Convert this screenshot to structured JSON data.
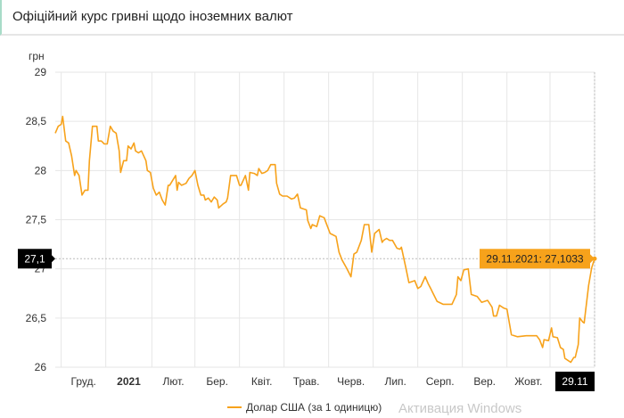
{
  "header": {
    "title": "Офіційний курс гривні щодо іноземних валют"
  },
  "watermark": "Активация Windows",
  "colors": {
    "line": "#f7a21b",
    "grid": "#e6e6e6",
    "crosshair_label_bg": "#000000"
  },
  "chart_data": {
    "type": "line",
    "title": "Офіційний курс гривні щодо іноземних валют",
    "ylabel": "грн",
    "xlabel": "",
    "ylim": [
      26,
      29
    ],
    "yticks": [
      "29",
      "28,5",
      "28",
      "27,5",
      "27",
      "26,5",
      "26"
    ],
    "ytick_values": [
      29,
      28.5,
      28,
      27.5,
      27,
      26.5,
      26
    ],
    "x_unit": "days since start of visible range (approx.)",
    "xlim": [
      0,
      363
    ],
    "month_boundaries": [
      4,
      34,
      65,
      94,
      124,
      154,
      184,
      214,
      244,
      274,
      304,
      333,
      363
    ],
    "xticks": [
      {
        "label": "Груд.",
        "bold": false
      },
      {
        "label": "2021",
        "bold": true
      },
      {
        "label": "Лют.",
        "bold": false
      },
      {
        "label": "Бер.",
        "bold": false
      },
      {
        "label": "Квіт.",
        "bold": false
      },
      {
        "label": "Трав.",
        "bold": false
      },
      {
        "label": "Черв.",
        "bold": false
      },
      {
        "label": "Лип.",
        "bold": false
      },
      {
        "label": "Серп.",
        "bold": false
      },
      {
        "label": "Вер.",
        "bold": false
      },
      {
        "label": "Жовт.",
        "bold": false
      }
    ],
    "legend": {
      "label": "Долар США (за 1 одиницю)",
      "position": "bottom-center"
    },
    "crosshair": {
      "y_label": "27,1",
      "x_label": "29.11",
      "tooltip": "29.11.2021: 27,1033",
      "value": 27.1033,
      "x": 363
    },
    "series": [
      {
        "name": "Долар США (за 1 одиницю)",
        "points": [
          [
            0,
            28.38
          ],
          [
            2,
            28.45
          ],
          [
            4,
            28.47
          ],
          [
            5,
            28.55
          ],
          [
            7,
            28.3
          ],
          [
            9,
            28.28
          ],
          [
            11,
            28.15
          ],
          [
            13,
            27.95
          ],
          [
            14,
            28.0
          ],
          [
            16,
            27.95
          ],
          [
            18,
            27.75
          ],
          [
            20,
            27.8
          ],
          [
            22,
            27.8
          ],
          [
            23,
            28.1
          ],
          [
            25,
            28.45
          ],
          [
            28,
            28.45
          ],
          [
            29,
            28.3
          ],
          [
            31,
            28.3
          ],
          [
            33,
            28.27
          ],
          [
            35,
            28.27
          ],
          [
            37,
            28.45
          ],
          [
            39,
            28.4
          ],
          [
            41,
            28.38
          ],
          [
            43,
            28.2
          ],
          [
            44,
            27.98
          ],
          [
            46,
            28.1
          ],
          [
            48,
            28.1
          ],
          [
            49,
            28.25
          ],
          [
            51,
            28.22
          ],
          [
            53,
            28.28
          ],
          [
            54,
            28.2
          ],
          [
            56,
            28.18
          ],
          [
            58,
            28.2
          ],
          [
            61,
            28.1
          ],
          [
            62,
            28.0
          ],
          [
            64,
            27.98
          ],
          [
            66,
            27.82
          ],
          [
            68,
            27.75
          ],
          [
            70,
            27.78
          ],
          [
            72,
            27.7
          ],
          [
            74,
            27.65
          ],
          [
            76,
            27.85
          ],
          [
            77,
            27.85
          ],
          [
            81,
            27.95
          ],
          [
            82,
            27.8
          ],
          [
            83,
            27.88
          ],
          [
            85,
            27.85
          ],
          [
            88,
            27.87
          ],
          [
            90,
            27.92
          ],
          [
            92,
            27.95
          ],
          [
            94,
            28.0
          ],
          [
            96,
            27.85
          ],
          [
            98,
            27.75
          ],
          [
            100,
            27.75
          ],
          [
            101,
            27.7
          ],
          [
            103,
            27.72
          ],
          [
            105,
            27.68
          ],
          [
            107,
            27.73
          ],
          [
            109,
            27.7
          ],
          [
            110,
            27.62
          ],
          [
            113,
            27.66
          ],
          [
            115,
            27.68
          ],
          [
            116,
            27.72
          ],
          [
            118,
            27.95
          ],
          [
            120,
            27.95
          ],
          [
            122,
            27.95
          ],
          [
            124,
            27.85
          ],
          [
            125,
            27.85
          ],
          [
            128,
            27.95
          ],
          [
            130,
            27.8
          ],
          [
            131,
            27.98
          ],
          [
            134,
            27.97
          ],
          [
            136,
            27.95
          ],
          [
            137,
            28.02
          ],
          [
            139,
            27.97
          ],
          [
            141,
            27.98
          ],
          [
            143,
            28.0
          ],
          [
            145,
            28.06
          ],
          [
            148,
            28.06
          ],
          [
            149,
            27.87
          ],
          [
            151,
            27.76
          ],
          [
            153,
            27.74
          ],
          [
            156,
            27.74
          ],
          [
            159,
            27.71
          ],
          [
            161,
            27.72
          ],
          [
            163,
            27.76
          ],
          [
            165,
            27.62
          ],
          [
            169,
            27.6
          ],
          [
            170,
            27.49
          ],
          [
            172,
            27.41
          ],
          [
            173,
            27.45
          ],
          [
            176,
            27.43
          ],
          [
            178,
            27.54
          ],
          [
            181,
            27.52
          ],
          [
            182,
            27.48
          ],
          [
            185,
            27.36
          ],
          [
            189,
            27.33
          ],
          [
            191,
            27.17
          ],
          [
            193,
            27.09
          ],
          [
            196,
            27.01
          ],
          [
            199,
            26.92
          ],
          [
            201,
            27.15
          ],
          [
            203,
            27.17
          ],
          [
            206,
            27.29
          ],
          [
            208,
            27.45
          ],
          [
            211,
            27.45
          ],
          [
            213,
            27.17
          ],
          [
            215,
            27.36
          ],
          [
            218,
            27.4
          ],
          [
            220,
            27.27
          ],
          [
            221,
            27.29
          ],
          [
            223,
            27.31
          ],
          [
            225,
            27.29
          ],
          [
            227,
            27.29
          ],
          [
            230,
            27.21
          ],
          [
            232,
            27.2
          ],
          [
            233,
            27.22
          ],
          [
            236,
            27.01
          ],
          [
            238,
            26.86
          ],
          [
            242,
            26.88
          ],
          [
            244,
            26.8
          ],
          [
            246,
            26.82
          ],
          [
            249,
            26.92
          ],
          [
            251,
            26.85
          ],
          [
            253,
            26.79
          ],
          [
            254,
            26.76
          ],
          [
            257,
            26.67
          ],
          [
            261,
            26.64
          ],
          [
            267,
            26.64
          ],
          [
            270,
            26.74
          ],
          [
            271,
            26.92
          ],
          [
            273,
            26.88
          ],
          [
            275,
            26.99
          ],
          [
            278,
            27.0
          ],
          [
            280,
            26.74
          ],
          [
            284,
            26.72
          ],
          [
            287,
            26.66
          ],
          [
            291,
            26.68
          ],
          [
            294,
            26.61
          ],
          [
            295,
            26.52
          ],
          [
            297,
            26.52
          ],
          [
            299,
            26.63
          ],
          [
            302,
            26.6
          ],
          [
            304,
            26.59
          ],
          [
            307,
            26.33
          ],
          [
            311,
            26.31
          ],
          [
            317,
            26.32
          ],
          [
            324,
            26.32
          ],
          [
            326,
            26.28
          ],
          [
            328,
            26.2
          ],
          [
            329,
            26.28
          ],
          [
            332,
            26.27
          ],
          [
            334,
            26.4
          ],
          [
            335,
            26.31
          ],
          [
            338,
            26.3
          ],
          [
            340,
            26.2
          ],
          [
            342,
            26.18
          ],
          [
            343,
            26.09
          ],
          [
            345,
            26.07
          ],
          [
            347,
            26.05
          ],
          [
            349,
            26.1
          ],
          [
            350,
            26.1
          ],
          [
            352,
            26.23
          ],
          [
            353,
            26.5
          ],
          [
            355,
            26.46
          ],
          [
            356,
            26.45
          ],
          [
            359,
            26.83
          ],
          [
            361,
            27.01
          ],
          [
            363,
            27.1033
          ]
        ]
      }
    ]
  }
}
